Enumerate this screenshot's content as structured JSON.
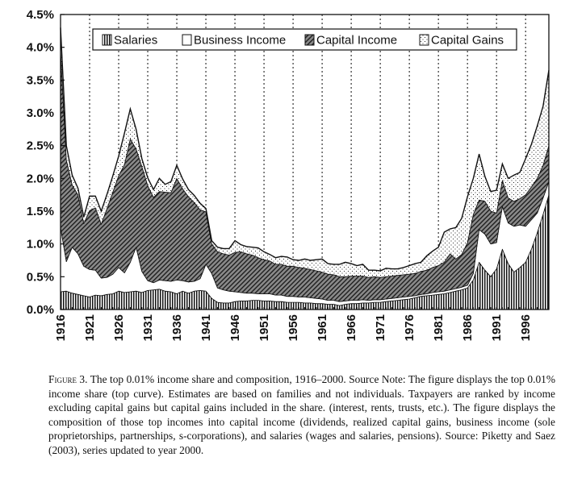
{
  "chart_data": {
    "type": "area",
    "stacked": true,
    "xlim": [
      1916,
      2000
    ],
    "ylim": [
      0,
      4.5
    ],
    "y_ticks": [
      "0.0%",
      "0.5%",
      "1.0%",
      "1.5%",
      "2.0%",
      "2.5%",
      "3.0%",
      "3.5%",
      "4.0%",
      "4.5%"
    ],
    "x_ticks": [
      "1916",
      "1921",
      "1926",
      "1931",
      "1936",
      "1941",
      "1946",
      "1951",
      "1956",
      "1961",
      "1966",
      "1971",
      "1976",
      "1981",
      "1986",
      "1991",
      "1996"
    ],
    "x_tick_values": [
      1916,
      1921,
      1926,
      1931,
      1936,
      1941,
      1946,
      1951,
      1956,
      1961,
      1966,
      1971,
      1976,
      1981,
      1986,
      1991,
      1996
    ],
    "legend": [
      "Salaries",
      "Business Income",
      "Capital Income",
      "Capital Gains"
    ],
    "legend_position": "top-right",
    "x": [
      1916,
      1917,
      1918,
      1919,
      1920,
      1921,
      1922,
      1923,
      1924,
      1925,
      1926,
      1927,
      1928,
      1929,
      1930,
      1931,
      1932,
      1933,
      1934,
      1935,
      1936,
      1937,
      1938,
      1939,
      1940,
      1941,
      1942,
      1943,
      1944,
      1945,
      1946,
      1947,
      1948,
      1949,
      1950,
      1951,
      1952,
      1953,
      1954,
      1955,
      1956,
      1957,
      1958,
      1959,
      1960,
      1961,
      1962,
      1963,
      1964,
      1965,
      1966,
      1967,
      1968,
      1969,
      1970,
      1971,
      1972,
      1973,
      1974,
      1975,
      1976,
      1977,
      1978,
      1979,
      1980,
      1981,
      1982,
      1983,
      1984,
      1985,
      1986,
      1987,
      1988,
      1989,
      1990,
      1991,
      1992,
      1993,
      1994,
      1995,
      1996,
      1997,
      1998,
      1999,
      2000
    ],
    "series": [
      {
        "name": "Salaries",
        "values": [
          0.27,
          0.28,
          0.25,
          0.23,
          0.21,
          0.19,
          0.22,
          0.21,
          0.23,
          0.24,
          0.28,
          0.26,
          0.27,
          0.28,
          0.26,
          0.29,
          0.3,
          0.31,
          0.28,
          0.27,
          0.24,
          0.28,
          0.25,
          0.28,
          0.29,
          0.28,
          0.17,
          0.11,
          0.1,
          0.1,
          0.12,
          0.13,
          0.13,
          0.14,
          0.14,
          0.13,
          0.13,
          0.12,
          0.12,
          0.11,
          0.11,
          0.11,
          0.1,
          0.1,
          0.09,
          0.09,
          0.08,
          0.08,
          0.06,
          0.08,
          0.09,
          0.09,
          0.1,
          0.1,
          0.11,
          0.11,
          0.12,
          0.13,
          0.14,
          0.15,
          0.16,
          0.18,
          0.2,
          0.21,
          0.22,
          0.23,
          0.24,
          0.26,
          0.28,
          0.3,
          0.33,
          0.45,
          0.72,
          0.6,
          0.5,
          0.62,
          0.92,
          0.7,
          0.57,
          0.64,
          0.72,
          0.92,
          1.17,
          1.45,
          1.75
        ]
      },
      {
        "name": "Business Income",
        "values": [
          0.98,
          0.45,
          0.7,
          0.62,
          0.45,
          0.42,
          0.38,
          0.27,
          0.26,
          0.3,
          0.36,
          0.3,
          0.45,
          0.67,
          0.32,
          0.15,
          0.11,
          0.14,
          0.16,
          0.16,
          0.21,
          0.16,
          0.17,
          0.15,
          0.18,
          0.41,
          0.38,
          0.22,
          0.2,
          0.18,
          0.15,
          0.13,
          0.12,
          0.11,
          0.1,
          0.11,
          0.11,
          0.1,
          0.1,
          0.09,
          0.09,
          0.08,
          0.09,
          0.08,
          0.08,
          0.07,
          0.06,
          0.06,
          0.06,
          0.05,
          0.05,
          0.05,
          0.05,
          0.04,
          0.04,
          0.04,
          0.04,
          0.04,
          0.04,
          0.04,
          0.04,
          0.03,
          0.03,
          0.03,
          0.04,
          0.04,
          0.04,
          0.04,
          0.04,
          0.04,
          0.04,
          0.1,
          0.5,
          0.55,
          0.5,
          0.4,
          0.65,
          0.62,
          0.7,
          0.65,
          0.55,
          0.45,
          0.3,
          0.25,
          0.2
        ]
      },
      {
        "name": "Capital Income",
        "values": [
          2.7,
          1.55,
          0.95,
          0.9,
          0.65,
          0.9,
          0.95,
          0.82,
          1.05,
          1.25,
          1.4,
          1.65,
          1.88,
          1.5,
          1.6,
          1.45,
          1.3,
          1.35,
          1.35,
          1.35,
          1.55,
          1.4,
          1.3,
          1.2,
          1.05,
          0.8,
          0.45,
          0.55,
          0.55,
          0.55,
          0.6,
          0.62,
          0.6,
          0.58,
          0.55,
          0.52,
          0.5,
          0.47,
          0.47,
          0.46,
          0.46,
          0.45,
          0.44,
          0.43,
          0.42,
          0.41,
          0.4,
          0.39,
          0.38,
          0.37,
          0.37,
          0.37,
          0.36,
          0.35,
          0.35,
          0.34,
          0.34,
          0.34,
          0.34,
          0.34,
          0.34,
          0.34,
          0.35,
          0.36,
          0.38,
          0.4,
          0.44,
          0.55,
          0.45,
          0.5,
          0.65,
          0.9,
          0.45,
          0.5,
          0.5,
          0.45,
          0.4,
          0.38,
          0.38,
          0.4,
          0.48,
          0.5,
          0.53,
          0.5,
          0.55
        ]
      },
      {
        "name": "Capital Gains",
        "values": [
          0.35,
          0.22,
          0.15,
          0.1,
          0.1,
          0.22,
          0.18,
          0.2,
          0.22,
          0.25,
          0.3,
          0.48,
          0.46,
          0.3,
          0.12,
          0.12,
          0.12,
          0.2,
          0.12,
          0.17,
          0.2,
          0.15,
          0.11,
          0.11,
          0.1,
          0.05,
          0.05,
          0.07,
          0.08,
          0.1,
          0.18,
          0.11,
          0.11,
          0.12,
          0.15,
          0.12,
          0.1,
          0.1,
          0.12,
          0.14,
          0.1,
          0.11,
          0.14,
          0.14,
          0.17,
          0.2,
          0.16,
          0.16,
          0.19,
          0.22,
          0.19,
          0.16,
          0.18,
          0.11,
          0.1,
          0.1,
          0.13,
          0.11,
          0.1,
          0.11,
          0.13,
          0.15,
          0.14,
          0.22,
          0.25,
          0.28,
          0.46,
          0.38,
          0.48,
          0.55,
          0.7,
          0.55,
          0.7,
          0.38,
          0.3,
          0.35,
          0.25,
          0.3,
          0.4,
          0.4,
          0.55,
          0.65,
          0.8,
          0.9,
          1.15
        ]
      }
    ]
  },
  "caption": {
    "label": "Figure 3.",
    "text": "The top 0.01% income share and composition, 1916–2000. Source Note: The figure displays the top 0.01% income share (top curve). Estimates are based on families and not individuals. Taxpayers are ranked by income excluding capital gains but capital gains included in the share. (interest, rents, trusts, etc.). The figure displays the composition of those top incomes into capital income (dividends, realized capital gains, business income (sole proprietorships, partnerships, s-corporations), and salaries (wages and salaries, pensions). Source: Piketty and Saez (2003), series updated to year 2000."
  }
}
